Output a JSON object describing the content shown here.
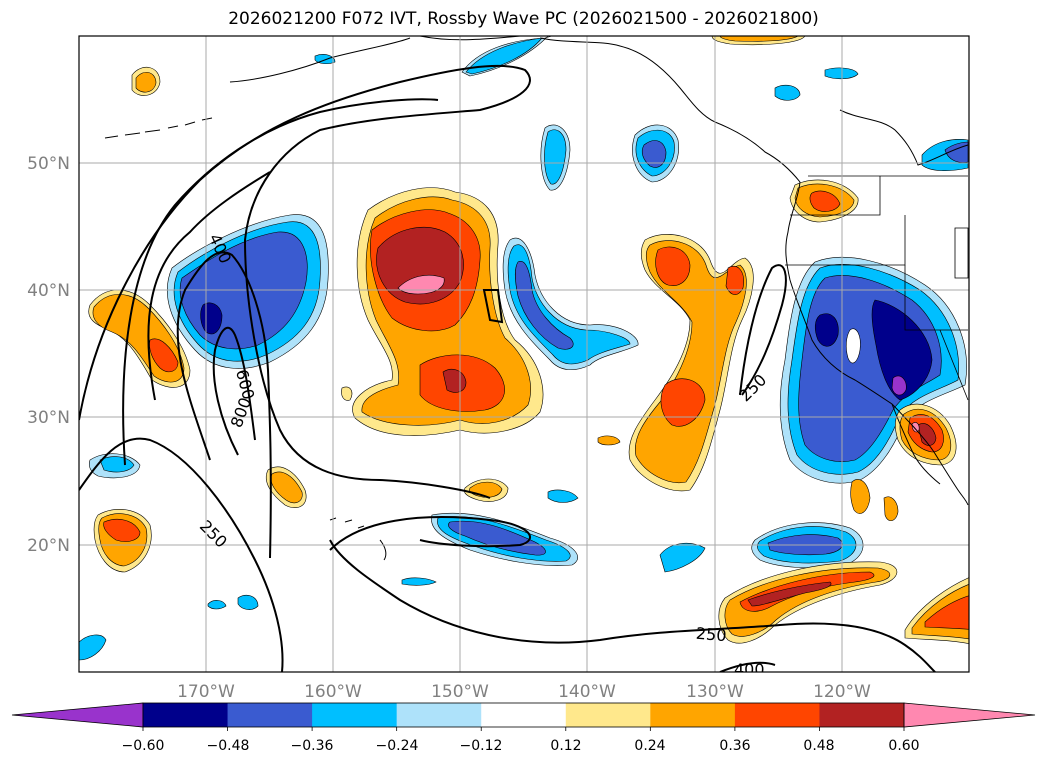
{
  "title": "2026021200 F072 IVT, Rossby Wave PC (2026021500 - 2026021800)",
  "map": {
    "lon_labels": [
      "170°W",
      "160°W",
      "150°W",
      "140°W",
      "130°W",
      "120°W"
    ],
    "lat_labels": [
      "50°N",
      "40°N",
      "30°N",
      "20°N"
    ],
    "contour_labels": [
      "400",
      "600",
      "800",
      "250",
      "250",
      "250",
      "400"
    ]
  },
  "colorbar": {
    "tick_labels": [
      "−0.60",
      "−0.48",
      "−0.36",
      "−0.24",
      "−0.12",
      "0.12",
      "0.24",
      "0.36",
      "0.48",
      "0.60"
    ],
    "colors": [
      "#9933cc",
      "#00008b",
      "#3a5bd0",
      "#00bfff",
      "#aee2fa",
      "#ffffff",
      "#ffe88c",
      "#ffa500",
      "#ff4500",
      "#b22222",
      "#ff88b0"
    ]
  },
  "palette": {
    "deep_purple": "#9933cc",
    "navy": "#00008b",
    "royal_blue": "#3a5bd0",
    "sky_blue": "#00bfff",
    "light_blue": "#aee2fa",
    "light_yellow": "#ffe88c",
    "orange": "#ffa500",
    "red_orange": "#ff4500",
    "dark_red": "#b22222",
    "pink": "#ff88b0"
  }
}
